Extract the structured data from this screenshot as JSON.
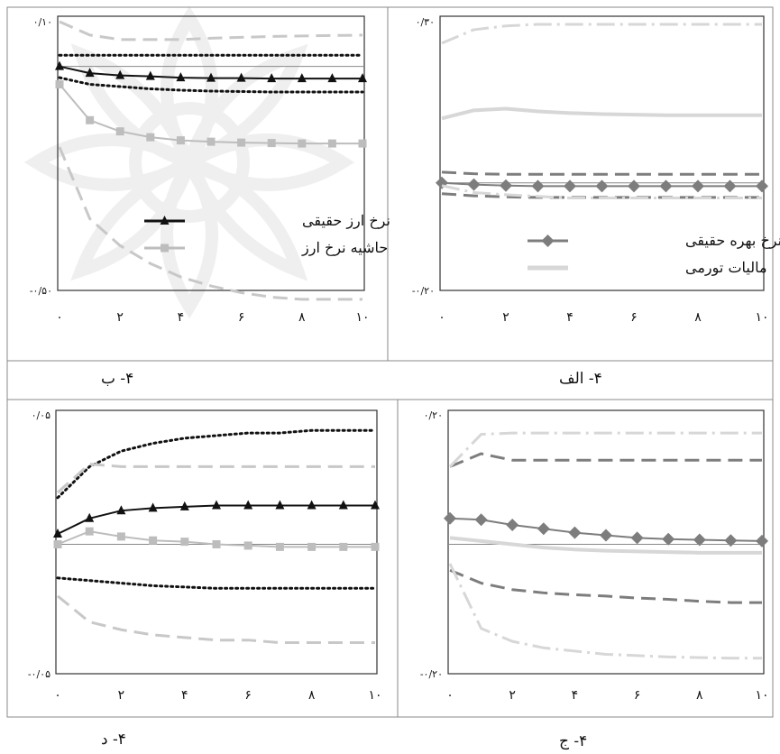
{
  "figure": {
    "captions": [
      "۴- ب",
      "۴- الف",
      "۴- د",
      "۴- ج"
    ]
  },
  "chart_data": [
    {
      "id": "panel-b",
      "type": "line",
      "caption": "۴- ب",
      "x": [
        0,
        1,
        2,
        3,
        4,
        5,
        6,
        7,
        8,
        9,
        10
      ],
      "x_tick_labels": [
        "۰",
        "۲",
        "۴",
        "۶",
        "۸",
        "۱۰"
      ],
      "ylim": [
        -0.5,
        0.1
      ],
      "y_tick_labels": [
        "۰/۱۰",
        "-۰/۵۰"
      ],
      "legend_position": "middle-right",
      "series": [
        {
          "name": "نرخ ارز حقیقی",
          "role": "mean",
          "color": "#111111",
          "style": "solid",
          "marker": "triangle",
          "legend": true,
          "values": [
            0.0,
            -0.015,
            -0.02,
            -0.022,
            -0.025,
            -0.026,
            -0.026,
            -0.027,
            -0.027,
            -0.027,
            -0.027
          ]
        },
        {
          "name": "",
          "role": "band",
          "color": "#111111",
          "style": "dotted",
          "values": [
            0.025,
            0.025,
            0.025,
            0.025,
            0.025,
            0.025,
            0.025,
            0.025,
            0.025,
            0.025,
            0.025
          ]
        },
        {
          "name": "",
          "role": "band",
          "color": "#111111",
          "style": "dotted",
          "values": [
            -0.025,
            -0.04,
            -0.045,
            -0.05,
            -0.053,
            -0.055,
            -0.056,
            -0.057,
            -0.057,
            -0.057,
            -0.057
          ]
        },
        {
          "name": "حاشیه نرخ ارز",
          "role": "mean",
          "color": "#bdbdbd",
          "style": "solid",
          "marker": "square",
          "legend": true,
          "values": [
            -0.04,
            -0.12,
            -0.145,
            -0.158,
            -0.165,
            -0.168,
            -0.17,
            -0.171,
            -0.172,
            -0.172,
            -0.172
          ]
        },
        {
          "name": "",
          "role": "band",
          "color": "#c8c8c8",
          "style": "dashed",
          "values": [
            0.1,
            0.07,
            0.06,
            0.06,
            0.06,
            0.063,
            0.065,
            0.067,
            0.068,
            0.069,
            0.07
          ]
        },
        {
          "name": "",
          "role": "band",
          "color": "#c8c8c8",
          "style": "dashed",
          "values": [
            -0.18,
            -0.34,
            -0.4,
            -0.44,
            -0.47,
            -0.49,
            -0.505,
            -0.515,
            -0.52,
            -0.52,
            -0.52
          ]
        }
      ]
    },
    {
      "id": "panel-alef",
      "type": "line",
      "caption": "۴- الف",
      "x": [
        0,
        1,
        2,
        3,
        4,
        5,
        6,
        7,
        8,
        9,
        10
      ],
      "x_tick_labels": [
        "۰",
        "۲",
        "۴",
        "۶",
        "۸",
        "۱۰"
      ],
      "ylim": [
        -0.2,
        0.3
      ],
      "y_tick_labels": [
        "۰/۳۰",
        "-۰/۲۰"
      ],
      "legend_position": "bottom-middle",
      "series": [
        {
          "name": "نرخ بهره حقیقی",
          "role": "mean",
          "color": "#7d7d7d",
          "style": "solid",
          "marker": "diamond",
          "legend": true,
          "values": [
            0.0,
            -0.003,
            -0.005,
            -0.006,
            -0.006,
            -0.006,
            -0.006,
            -0.006,
            -0.006,
            -0.006,
            -0.006
          ]
        },
        {
          "name": "",
          "role": "band",
          "color": "#7d7d7d",
          "style": "dashed",
          "values": [
            0.02,
            0.017,
            0.016,
            0.016,
            0.016,
            0.016,
            0.016,
            0.016,
            0.016,
            0.016,
            0.016
          ]
        },
        {
          "name": "",
          "role": "band",
          "color": "#7d7d7d",
          "style": "dashed",
          "values": [
            -0.02,
            -0.024,
            -0.026,
            -0.027,
            -0.027,
            -0.027,
            -0.027,
            -0.027,
            -0.027,
            -0.027,
            -0.027
          ]
        },
        {
          "name": "مالیات تورمی",
          "role": "mean",
          "color": "#d7d7d7",
          "style": "solid",
          "marker": "none",
          "legend": true,
          "values": [
            0.12,
            0.135,
            0.138,
            0.133,
            0.13,
            0.128,
            0.127,
            0.126,
            0.126,
            0.126,
            0.126
          ]
        },
        {
          "name": "",
          "role": "band",
          "color": "#d7d7d7",
          "style": "dashdot",
          "values": [
            0.26,
            0.285,
            0.292,
            0.295,
            0.295,
            0.295,
            0.295,
            0.295,
            0.295,
            0.295,
            0.295
          ]
        },
        {
          "name": "",
          "role": "band",
          "color": "#d7d7d7",
          "style": "dashdot",
          "values": [
            -0.005,
            -0.018,
            -0.022,
            -0.025,
            -0.028,
            -0.028,
            -0.028,
            -0.028,
            -0.028,
            -0.028,
            -0.028
          ]
        }
      ]
    },
    {
      "id": "panel-dal",
      "type": "line",
      "caption": "۴- د",
      "x": [
        0,
        1,
        2,
        3,
        4,
        5,
        6,
        7,
        8,
        9,
        10
      ],
      "x_tick_labels": [
        "۰",
        "۲",
        "۴",
        "۶",
        "۸",
        "۱۰"
      ],
      "ylim": [
        -0.05,
        0.05
      ],
      "y_tick_labels": [
        "۰/۰۵",
        "-۰/۰۵"
      ],
      "series": [
        {
          "name": "",
          "role": "mean",
          "color": "#111111",
          "style": "solid",
          "marker": "triangle",
          "values": [
            0.004,
            0.01,
            0.013,
            0.014,
            0.0145,
            0.015,
            0.015,
            0.015,
            0.015,
            0.015,
            0.015
          ]
        },
        {
          "name": "",
          "role": "band",
          "color": "#111111",
          "style": "dotted",
          "values": [
            0.018,
            0.03,
            0.036,
            0.039,
            0.041,
            0.042,
            0.043,
            0.043,
            0.044,
            0.044,
            0.044
          ]
        },
        {
          "name": "",
          "role": "band",
          "color": "#111111",
          "style": "dotted",
          "values": [
            -0.013,
            -0.014,
            -0.015,
            -0.016,
            -0.0165,
            -0.017,
            -0.017,
            -0.017,
            -0.017,
            -0.017,
            -0.017
          ]
        },
        {
          "name": "",
          "role": "mean",
          "color": "#bdbdbd",
          "style": "solid",
          "marker": "square",
          "values": [
            0.0,
            0.005,
            0.003,
            0.0015,
            0.001,
            0.0,
            -0.0005,
            -0.001,
            -0.001,
            -0.001,
            -0.001
          ]
        },
        {
          "name": "",
          "role": "band",
          "color": "#c8c8c8",
          "style": "dashed",
          "values": [
            0.02,
            0.031,
            0.03,
            0.03,
            0.03,
            0.03,
            0.03,
            0.03,
            0.03,
            0.03,
            0.03
          ]
        },
        {
          "name": "",
          "role": "band",
          "color": "#c8c8c8",
          "style": "dashed",
          "values": [
            -0.02,
            -0.03,
            -0.033,
            -0.035,
            -0.036,
            -0.037,
            -0.037,
            -0.038,
            -0.038,
            -0.038,
            -0.038
          ]
        }
      ]
    },
    {
      "id": "panel-jim",
      "type": "line",
      "caption": "۴- ج",
      "x": [
        0,
        1,
        2,
        3,
        4,
        5,
        6,
        7,
        8,
        9,
        10
      ],
      "x_tick_labels": [
        "۰",
        "۲",
        "۴",
        "۶",
        "۸",
        "۱۰"
      ],
      "ylim": [
        -0.2,
        0.2
      ],
      "y_tick_labels": [
        "۰/۲۰",
        "-۰/۲۰"
      ],
      "series": [
        {
          "name": "",
          "role": "mean",
          "color": "#7d7d7d",
          "style": "solid",
          "marker": "diamond",
          "values": [
            0.04,
            0.038,
            0.03,
            0.024,
            0.018,
            0.014,
            0.01,
            0.008,
            0.007,
            0.006,
            0.005
          ]
        },
        {
          "name": "",
          "role": "band",
          "color": "#7d7d7d",
          "style": "dashed",
          "values": [
            0.12,
            0.14,
            0.13,
            0.13,
            0.13,
            0.13,
            0.13,
            0.13,
            0.13,
            0.13,
            0.13
          ]
        },
        {
          "name": "",
          "role": "band",
          "color": "#7d7d7d",
          "style": "dashed",
          "values": [
            -0.04,
            -0.06,
            -0.07,
            -0.075,
            -0.078,
            -0.08,
            -0.083,
            -0.085,
            -0.088,
            -0.09,
            -0.09
          ]
        },
        {
          "name": "",
          "role": "mean",
          "color": "#d7d7d7",
          "style": "solid",
          "marker": "none",
          "values": [
            0.01,
            0.005,
            0.0,
            -0.005,
            -0.008,
            -0.01,
            -0.011,
            -0.012,
            -0.013,
            -0.013,
            -0.013
          ]
        },
        {
          "name": "",
          "role": "band",
          "color": "#d7d7d7",
          "style": "dashdot",
          "values": [
            0.12,
            0.17,
            0.172,
            0.172,
            0.172,
            0.172,
            0.172,
            0.172,
            0.172,
            0.172,
            0.172
          ]
        },
        {
          "name": "",
          "role": "band",
          "color": "#d7d7d7",
          "style": "dashdot",
          "values": [
            -0.03,
            -0.13,
            -0.15,
            -0.16,
            -0.165,
            -0.17,
            -0.172,
            -0.174,
            -0.175,
            -0.176,
            -0.176
          ]
        }
      ]
    }
  ]
}
